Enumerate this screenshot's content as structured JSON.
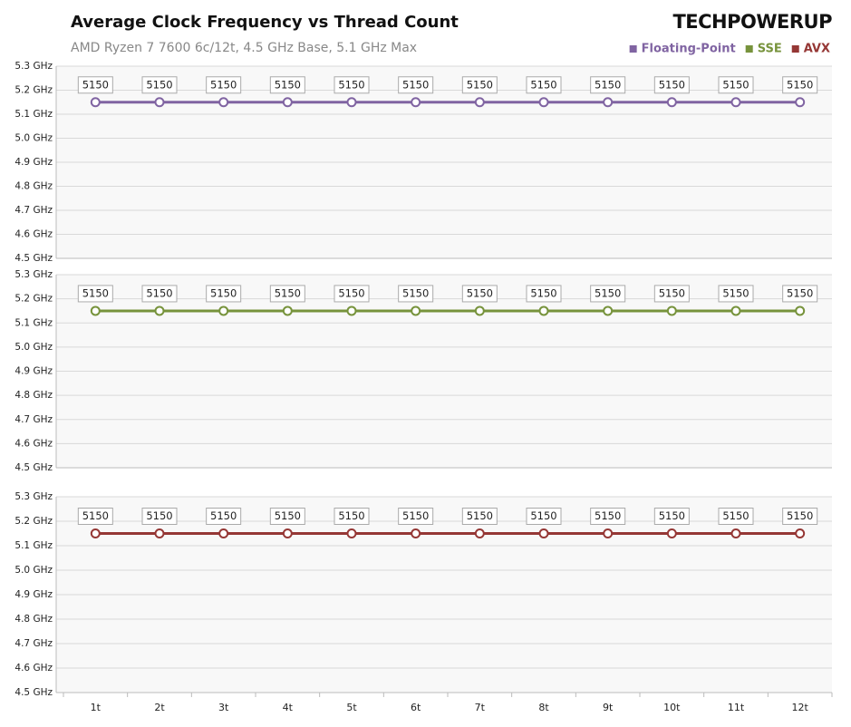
{
  "logo": "TECHPOWERUP",
  "chart_data": [
    {
      "type": "line",
      "title": "Average Clock Frequency vs Thread Count",
      "subtitle": "AMD Ryzen 7 7600 6c/12t, 4.5 GHz Base, 5.1 GHz Max",
      "series": [
        {
          "name": "Floating-Point",
          "color": "#8064a2",
          "values": [
            5150,
            5150,
            5150,
            5150,
            5150,
            5150,
            5150,
            5150,
            5150,
            5150,
            5150,
            5150
          ]
        }
      ],
      "ylim": [
        4500,
        5300
      ],
      "yticks": [
        {
          "value": 4500,
          "label": "4.5 GHz"
        },
        {
          "value": 4600,
          "label": "4.6 GHz"
        },
        {
          "value": 4700,
          "label": "4.7 GHz"
        },
        {
          "value": 4800,
          "label": "4.8 GHz"
        },
        {
          "value": 4900,
          "label": "4.9 GHz"
        },
        {
          "value": 5000,
          "label": "5.0 GHz"
        },
        {
          "value": 5100,
          "label": "5.1 GHz"
        },
        {
          "value": 5200,
          "label": "5.2 GHz"
        },
        {
          "value": 5300,
          "label": "5.3 GHz"
        }
      ],
      "grid": true
    },
    {
      "type": "line",
      "series": [
        {
          "name": "SSE",
          "color": "#77933c",
          "values": [
            5150,
            5150,
            5150,
            5150,
            5150,
            5150,
            5150,
            5150,
            5150,
            5150,
            5150,
            5150
          ]
        }
      ],
      "ylim": [
        4500,
        5300
      ],
      "yticks": [
        {
          "value": 4500,
          "label": "4.5 GHz"
        },
        {
          "value": 4600,
          "label": "4.6 GHz"
        },
        {
          "value": 4700,
          "label": "4.7 GHz"
        },
        {
          "value": 4800,
          "label": "4.8 GHz"
        },
        {
          "value": 4900,
          "label": "4.9 GHz"
        },
        {
          "value": 5000,
          "label": "5.0 GHz"
        },
        {
          "value": 5100,
          "label": "5.1 GHz"
        },
        {
          "value": 5200,
          "label": "5.2 GHz"
        },
        {
          "value": 5300,
          "label": "5.3 GHz"
        }
      ],
      "grid": true
    },
    {
      "type": "line",
      "categories": [
        "1t",
        "2t",
        "3t",
        "4t",
        "5t",
        "6t",
        "7t",
        "8t",
        "9t",
        "10t",
        "11t",
        "12t"
      ],
      "series": [
        {
          "name": "AVX",
          "color": "#953735",
          "values": [
            5150,
            5150,
            5150,
            5150,
            5150,
            5150,
            5150,
            5150,
            5150,
            5150,
            5150,
            5150
          ]
        }
      ],
      "ylim": [
        4500,
        5300
      ],
      "yticks": [
        {
          "value": 4500,
          "label": "4.5 GHz"
        },
        {
          "value": 4600,
          "label": "4.6 GHz"
        },
        {
          "value": 4700,
          "label": "4.7 GHz"
        },
        {
          "value": 4800,
          "label": "4.8 GHz"
        },
        {
          "value": 4900,
          "label": "4.9 GHz"
        },
        {
          "value": 5000,
          "label": "5.0 GHz"
        },
        {
          "value": 5100,
          "label": "5.1 GHz"
        },
        {
          "value": 5200,
          "label": "5.2 GHz"
        },
        {
          "value": 5300,
          "label": "5.3 GHz"
        }
      ],
      "grid": true
    }
  ]
}
